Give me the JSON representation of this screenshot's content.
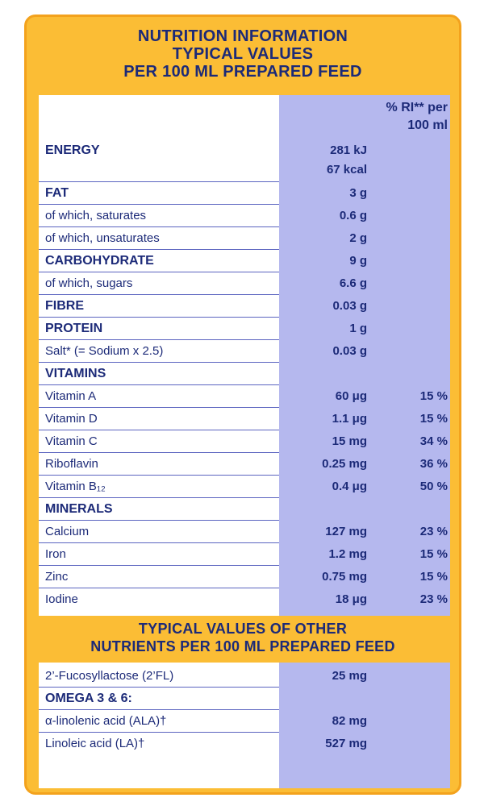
{
  "header": {
    "lines": [
      "NUTRITION INFORMATION",
      "TYPICAL VALUES",
      "PER 100 ML PREPARED FEED"
    ]
  },
  "table": {
    "ri_header": [
      "% RI** per",
      "100 ml"
    ],
    "rows": [
      {
        "name": "ENERGY",
        "amount": [
          "281 kJ",
          "67 kcal"
        ],
        "heading": true
      },
      {
        "name": "FAT",
        "amount": "3 g",
        "heading": true
      },
      {
        "name": "of which, saturates",
        "amount": "0.6 g"
      },
      {
        "name": "of which, unsaturates",
        "amount": "2 g"
      },
      {
        "name": "CARBOHYDRATE",
        "amount": "9 g",
        "heading": true
      },
      {
        "name": "of which, sugars",
        "amount": "6.6 g"
      },
      {
        "name": "FIBRE",
        "amount": "0.03 g",
        "heading": true
      },
      {
        "name": "PROTEIN",
        "amount": "1 g",
        "heading": true
      },
      {
        "name": "Salt* (= Sodium x 2.5)",
        "amount": "0.03 g"
      },
      {
        "name": "VITAMINS",
        "heading": true
      },
      {
        "name": "Vitamin A",
        "amount": "60 μg",
        "ri": "15 %"
      },
      {
        "name": "Vitamin D",
        "amount": "1.1 μg",
        "ri": "15 %"
      },
      {
        "name": "Vitamin C",
        "amount": "15 mg",
        "ri": "34 %"
      },
      {
        "name": "Riboflavin",
        "amount": "0.25 mg",
        "ri": "36 %"
      },
      {
        "name": "Vitamin B₁₂",
        "amount": "0.4 μg",
        "ri": "50 %"
      },
      {
        "name": "MINERALS",
        "heading": true
      },
      {
        "name": "Calcium",
        "amount": "127 mg",
        "ri": "23 %"
      },
      {
        "name": "Iron",
        "amount": "1.2 mg",
        "ri": "15 %"
      },
      {
        "name": "Zinc",
        "amount": "0.75 mg",
        "ri": "15 %"
      },
      {
        "name": "Iodine",
        "amount": "18 μg",
        "ri": "23 %"
      }
    ]
  },
  "other": {
    "lines": [
      "TYPICAL VALUES OF OTHER",
      "NUTRIENTS PER 100 ML PREPARED FEED"
    ],
    "rows": [
      {
        "name": "2’-Fucosyllactose (2’FL)",
        "amount": "25 mg"
      },
      {
        "name": "OMEGA 3 & 6:",
        "heading": true
      },
      {
        "name": "α-linolenic acid (ALA)†",
        "amount": "82 mg"
      },
      {
        "name": "Linoleic acid (LA)†",
        "amount": "527 mg"
      }
    ]
  }
}
